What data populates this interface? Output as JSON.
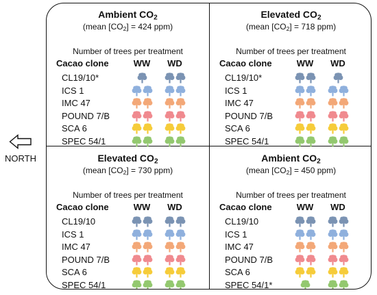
{
  "direction_label": "NORTH",
  "number_of_trees_title": "Number of trees per treatment",
  "column_headers": {
    "clone": "Cacao clone",
    "ww": "WW",
    "wd": "WD"
  },
  "clone_colors": {
    "CL19/10": "#7b93b3",
    "ICS 1": "#8fb0dd",
    "IMC 47": "#f3a878",
    "POUND 7/B": "#f08a8f",
    "SCA 6": "#f6cc3a",
    "SPEC 54/1": "#93c86f"
  },
  "quadrants": [
    {
      "treatment": "Ambient",
      "mean_prefix": "(mean [CO",
      "mean_suffix": "] = 424 ppm)",
      "rows": [
        {
          "clone": "CL19/10*",
          "color_key": "CL19/10",
          "ww": 1,
          "wd": 2
        },
        {
          "clone": "ICS 1",
          "color_key": "ICS 1",
          "ww": 2,
          "wd": 2
        },
        {
          "clone": "IMC 47",
          "color_key": "IMC 47",
          "ww": 2,
          "wd": 2
        },
        {
          "clone": "POUND 7/B",
          "color_key": "POUND 7/B",
          "ww": 2,
          "wd": 2
        },
        {
          "clone": "SCA 6",
          "color_key": "SCA 6",
          "ww": 2,
          "wd": 2
        },
        {
          "clone": "SPEC 54/1",
          "color_key": "SPEC 54/1",
          "ww": 2,
          "wd": 2
        }
      ]
    },
    {
      "treatment": "Elevated",
      "mean_prefix": "(mean [CO",
      "mean_suffix": "] = 718 ppm)",
      "rows": [
        {
          "clone": "CL19/10*",
          "color_key": "CL19/10",
          "ww": 2,
          "wd": 1
        },
        {
          "clone": "ICS 1",
          "color_key": "ICS 1",
          "ww": 2,
          "wd": 2
        },
        {
          "clone": "IMC 47",
          "color_key": "IMC 47",
          "ww": 2,
          "wd": 2
        },
        {
          "clone": "POUND 7/B",
          "color_key": "POUND 7/B",
          "ww": 2,
          "wd": 2
        },
        {
          "clone": "SCA 6",
          "color_key": "SCA 6",
          "ww": 2,
          "wd": 2
        },
        {
          "clone": "SPEC 54/1",
          "color_key": "SPEC 54/1",
          "ww": 2,
          "wd": 2
        }
      ]
    },
    {
      "treatment": "Elevated",
      "mean_prefix": "(mean [CO",
      "mean_suffix": "] = 730 ppm)",
      "rows": [
        {
          "clone": "CL19/10",
          "color_key": "CL19/10",
          "ww": 2,
          "wd": 2
        },
        {
          "clone": "ICS 1",
          "color_key": "ICS 1",
          "ww": 2,
          "wd": 2
        },
        {
          "clone": "IMC 47",
          "color_key": "IMC 47",
          "ww": 2,
          "wd": 2
        },
        {
          "clone": "POUND 7/B",
          "color_key": "POUND 7/B",
          "ww": 2,
          "wd": 2
        },
        {
          "clone": "SCA 6",
          "color_key": "SCA 6",
          "ww": 2,
          "wd": 2
        },
        {
          "clone": "SPEC 54/1",
          "color_key": "SPEC 54/1",
          "ww": 2,
          "wd": 2
        }
      ]
    },
    {
      "treatment": "Ambient",
      "mean_prefix": "(mean [CO",
      "mean_suffix": "] = 450 ppm)",
      "rows": [
        {
          "clone": "CL19/10",
          "color_key": "CL19/10",
          "ww": 2,
          "wd": 2
        },
        {
          "clone": "ICS 1",
          "color_key": "ICS 1",
          "ww": 2,
          "wd": 2
        },
        {
          "clone": "IMC 47",
          "color_key": "IMC 47",
          "ww": 2,
          "wd": 2
        },
        {
          "clone": "POUND 7/B",
          "color_key": "POUND 7/B",
          "ww": 2,
          "wd": 2
        },
        {
          "clone": "SCA 6",
          "color_key": "SCA 6",
          "ww": 2,
          "wd": 2
        },
        {
          "clone": "SPEC 54/1*",
          "color_key": "SPEC 54/1",
          "ww": 1,
          "wd": 2
        }
      ]
    }
  ]
}
